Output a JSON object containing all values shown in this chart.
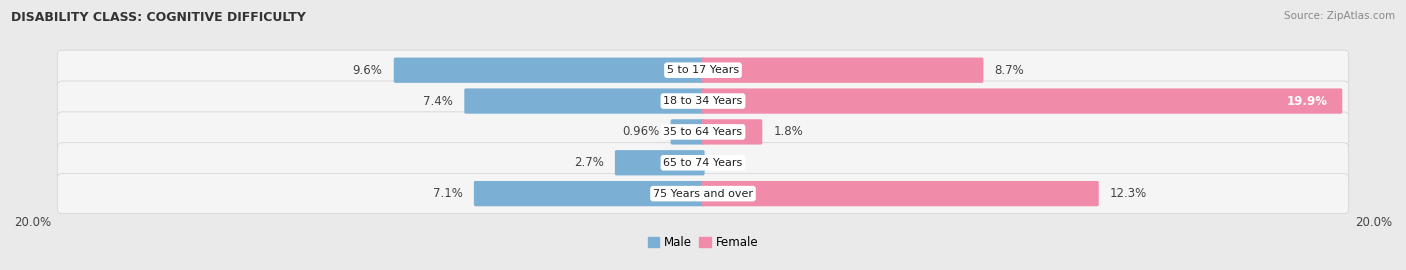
{
  "title": "DISABILITY CLASS: COGNITIVE DIFFICULTY",
  "source": "Source: ZipAtlas.com",
  "categories": [
    "5 to 17 Years",
    "18 to 34 Years",
    "35 to 64 Years",
    "65 to 74 Years",
    "75 Years and over"
  ],
  "male_values": [
    9.6,
    7.4,
    0.96,
    2.7,
    7.1
  ],
  "female_values": [
    8.7,
    19.9,
    1.8,
    0.0,
    12.3
  ],
  "male_color": "#7bafd4",
  "female_color": "#f08caa",
  "male_label": "Male",
  "female_label": "Female",
  "max_val": 20.0,
  "axis_label": "20.0%",
  "bg_color": "#eaeaea",
  "row_bg_color": "#f5f5f5",
  "title_fontsize": 9,
  "label_fontsize": 8.5,
  "source_fontsize": 7.5
}
